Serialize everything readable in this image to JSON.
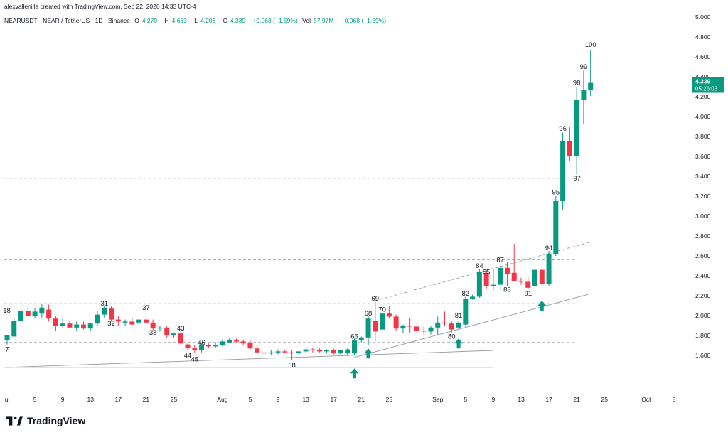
{
  "header": {
    "attribution": "alexvallenilla created with TradingView.com, Sep 22, 2026 14:33 UTC-4",
    "symbol": "NEARUSDT · NEAR / TetherUS · 1D · Binance",
    "open_label": "O",
    "open": "4.270",
    "high_label": "H",
    "high": "4.663",
    "low_label": "L",
    "low": "4.206",
    "close_label": "C",
    "close": "4.339",
    "change": "+0.068 (+1.59%)",
    "vol_label": "Vol",
    "vol": "57.97M",
    "vol_change": "+0.068 (+1.59%)"
  },
  "price_badge": {
    "price": "4.339",
    "countdown": "05:26:03"
  },
  "footer": {
    "brand": "TradingView"
  },
  "colors": {
    "up": "#089981",
    "down": "#f23645",
    "text": "#131722",
    "grid_line": "#9598a1",
    "arrow": "#089981"
  },
  "chart_data": {
    "type": "candlestick",
    "ylim": [
      1.4,
      5.0
    ],
    "y_ticks": [
      "5.000",
      "4.800",
      "4.600",
      "4.400",
      "4.200",
      "4.000",
      "3.800",
      "3.600",
      "3.400",
      "3.200",
      "3.000",
      "2.800",
      "2.600",
      "2.400",
      "2.200",
      "2.000",
      "1.800",
      "1.600"
    ],
    "x_ticks": [
      {
        "label": "ul",
        "day": 1
      },
      {
        "label": "5",
        "day": 5
      },
      {
        "label": "9",
        "day": 9
      },
      {
        "label": "13",
        "day": 13
      },
      {
        "label": "17",
        "day": 17
      },
      {
        "label": "21",
        "day": 21
      },
      {
        "label": "25",
        "day": 25
      },
      {
        "label": "Aug",
        "day": 32
      },
      {
        "label": "5",
        "day": 36
      },
      {
        "label": "9",
        "day": 40
      },
      {
        "label": "13",
        "day": 44
      },
      {
        "label": "17",
        "day": 48
      },
      {
        "label": "21",
        "day": 52
      },
      {
        "label": "25",
        "day": 56
      },
      {
        "label": "Sep",
        "day": 63
      },
      {
        "label": "5",
        "day": 67
      },
      {
        "label": "9",
        "day": 71
      },
      {
        "label": "13",
        "day": 75
      },
      {
        "label": "17",
        "day": 79
      },
      {
        "label": "21",
        "day": 83
      },
      {
        "label": "25",
        "day": 87
      },
      {
        "label": "Oct",
        "day": 93
      },
      {
        "label": "5",
        "day": 97
      }
    ],
    "candles": [
      {
        "day": 1,
        "o": 1.75,
        "h": 1.8,
        "l": 1.71,
        "c": 1.8
      },
      {
        "day": 2,
        "o": 1.79,
        "h": 1.97,
        "l": 1.78,
        "c": 1.95
      },
      {
        "day": 3,
        "o": 1.95,
        "h": 2.12,
        "l": 1.92,
        "c": 2.05
      },
      {
        "day": 4,
        "o": 2.05,
        "h": 2.09,
        "l": 1.99,
        "c": 2.0
      },
      {
        "day": 5,
        "o": 2.0,
        "h": 2.07,
        "l": 1.97,
        "c": 2.04
      },
      {
        "day": 6,
        "o": 2.02,
        "h": 2.12,
        "l": 1.98,
        "c": 2.08
      },
      {
        "day": 7,
        "o": 2.06,
        "h": 2.11,
        "l": 1.94,
        "c": 1.97
      },
      {
        "day": 8,
        "o": 1.97,
        "h": 2.0,
        "l": 1.85,
        "c": 1.9
      },
      {
        "day": 9,
        "o": 1.9,
        "h": 1.97,
        "l": 1.87,
        "c": 1.92
      },
      {
        "day": 10,
        "o": 1.92,
        "h": 1.95,
        "l": 1.87,
        "c": 1.88
      },
      {
        "day": 11,
        "o": 1.88,
        "h": 1.94,
        "l": 1.85,
        "c": 1.91
      },
      {
        "day": 12,
        "o": 1.91,
        "h": 1.94,
        "l": 1.86,
        "c": 1.87
      },
      {
        "day": 13,
        "o": 1.87,
        "h": 1.93,
        "l": 1.85,
        "c": 1.92
      },
      {
        "day": 14,
        "o": 1.92,
        "h": 2.05,
        "l": 1.9,
        "c": 2.01
      },
      {
        "day": 15,
        "o": 2.01,
        "h": 2.1,
        "l": 1.98,
        "c": 2.08
      },
      {
        "day": 16,
        "o": 2.07,
        "h": 2.09,
        "l": 1.94,
        "c": 1.96
      },
      {
        "day": 17,
        "o": 1.96,
        "h": 2.0,
        "l": 1.9,
        "c": 1.94
      },
      {
        "day": 18,
        "o": 1.93,
        "h": 1.96,
        "l": 1.9,
        "c": 1.94
      },
      {
        "day": 19,
        "o": 1.94,
        "h": 1.97,
        "l": 1.9,
        "c": 1.91
      },
      {
        "day": 20,
        "o": 1.93,
        "h": 1.96,
        "l": 1.89,
        "c": 1.96
      },
      {
        "day": 21,
        "o": 1.96,
        "h": 2.07,
        "l": 1.92,
        "c": 1.93
      },
      {
        "day": 22,
        "o": 1.93,
        "h": 1.96,
        "l": 1.85,
        "c": 1.87
      },
      {
        "day": 23,
        "o": 1.87,
        "h": 1.9,
        "l": 1.84,
        "c": 1.88
      },
      {
        "day": 24,
        "o": 1.88,
        "h": 1.9,
        "l": 1.78,
        "c": 1.8
      },
      {
        "day": 25,
        "o": 1.8,
        "h": 1.83,
        "l": 1.78,
        "c": 1.82
      },
      {
        "day": 26,
        "o": 1.82,
        "h": 1.85,
        "l": 1.7,
        "c": 1.72
      },
      {
        "day": 27,
        "o": 1.71,
        "h": 1.73,
        "l": 1.66,
        "c": 1.67
      },
      {
        "day": 28,
        "o": 1.67,
        "h": 1.7,
        "l": 1.63,
        "c": 1.65
      },
      {
        "day": 29,
        "o": 1.65,
        "h": 1.72,
        "l": 1.63,
        "c": 1.71
      },
      {
        "day": 30,
        "o": 1.7,
        "h": 1.72,
        "l": 1.67,
        "c": 1.69
      },
      {
        "day": 31,
        "o": 1.69,
        "h": 1.73,
        "l": 1.67,
        "c": 1.7
      },
      {
        "day": 32,
        "o": 1.7,
        "h": 1.76,
        "l": 1.69,
        "c": 1.74
      },
      {
        "day": 33,
        "o": 1.73,
        "h": 1.77,
        "l": 1.72,
        "c": 1.75
      },
      {
        "day": 34,
        "o": 1.75,
        "h": 1.77,
        "l": 1.73,
        "c": 1.74
      },
      {
        "day": 35,
        "o": 1.74,
        "h": 1.76,
        "l": 1.7,
        "c": 1.72
      },
      {
        "day": 36,
        "o": 1.73,
        "h": 1.75,
        "l": 1.66,
        "c": 1.67
      },
      {
        "day": 37,
        "o": 1.67,
        "h": 1.7,
        "l": 1.62,
        "c": 1.63
      },
      {
        "day": 38,
        "o": 1.63,
        "h": 1.65,
        "l": 1.61,
        "c": 1.62
      },
      {
        "day": 39,
        "o": 1.62,
        "h": 1.65,
        "l": 1.6,
        "c": 1.63
      },
      {
        "day": 40,
        "o": 1.63,
        "h": 1.66,
        "l": 1.61,
        "c": 1.64
      },
      {
        "day": 41,
        "o": 1.64,
        "h": 1.66,
        "l": 1.62,
        "c": 1.63
      },
      {
        "day": 42,
        "o": 1.63,
        "h": 1.65,
        "l": 1.55,
        "c": 1.62
      },
      {
        "day": 43,
        "o": 1.62,
        "h": 1.65,
        "l": 1.6,
        "c": 1.64
      },
      {
        "day": 44,
        "o": 1.64,
        "h": 1.67,
        "l": 1.62,
        "c": 1.66
      },
      {
        "day": 45,
        "o": 1.66,
        "h": 1.68,
        "l": 1.63,
        "c": 1.65
      },
      {
        "day": 46,
        "o": 1.65,
        "h": 1.67,
        "l": 1.63,
        "c": 1.64
      },
      {
        "day": 47,
        "o": 1.64,
        "h": 1.66,
        "l": 1.62,
        "c": 1.65
      },
      {
        "day": 48,
        "o": 1.65,
        "h": 1.67,
        "l": 1.61,
        "c": 1.62
      },
      {
        "day": 49,
        "o": 1.62,
        "h": 1.66,
        "l": 1.61,
        "c": 1.65
      },
      {
        "day": 50,
        "o": 1.62,
        "h": 1.67,
        "l": 1.6,
        "c": 1.66
      },
      {
        "day": 51,
        "o": 1.62,
        "h": 1.77,
        "l": 1.6,
        "c": 1.75
      },
      {
        "day": 52,
        "o": 1.75,
        "h": 1.79,
        "l": 1.73,
        "c": 1.78
      },
      {
        "day": 53,
        "o": 1.78,
        "h": 2.0,
        "l": 1.7,
        "c": 1.97
      },
      {
        "day": 54,
        "o": 1.95,
        "h": 2.14,
        "l": 1.74,
        "c": 1.84
      },
      {
        "day": 55,
        "o": 1.86,
        "h": 2.05,
        "l": 1.83,
        "c": 2.02
      },
      {
        "day": 56,
        "o": 2.02,
        "h": 2.1,
        "l": 1.97,
        "c": 1.99
      },
      {
        "day": 57,
        "o": 1.99,
        "h": 2.01,
        "l": 1.85,
        "c": 1.87
      },
      {
        "day": 58,
        "o": 1.87,
        "h": 1.91,
        "l": 1.82,
        "c": 1.9
      },
      {
        "day": 59,
        "o": 1.9,
        "h": 1.98,
        "l": 1.83,
        "c": 1.89
      },
      {
        "day": 60,
        "o": 1.89,
        "h": 1.95,
        "l": 1.81,
        "c": 1.85
      },
      {
        "day": 61,
        "o": 1.85,
        "h": 1.89,
        "l": 1.8,
        "c": 1.84
      },
      {
        "day": 62,
        "o": 1.84,
        "h": 1.9,
        "l": 1.81,
        "c": 1.88
      },
      {
        "day": 63,
        "o": 1.88,
        "h": 1.99,
        "l": 1.8,
        "c": 1.93
      },
      {
        "day": 64,
        "o": 1.93,
        "h": 2.04,
        "l": 1.9,
        "c": 1.92
      },
      {
        "day": 65,
        "o": 1.92,
        "h": 1.95,
        "l": 1.83,
        "c": 1.86
      },
      {
        "day": 66,
        "o": 1.88,
        "h": 1.94,
        "l": 1.86,
        "c": 1.93
      },
      {
        "day": 67,
        "o": 1.91,
        "h": 2.19,
        "l": 1.89,
        "c": 2.17
      },
      {
        "day": 68,
        "o": 2.17,
        "h": 2.21,
        "l": 2.16,
        "c": 2.19
      },
      {
        "day": 69,
        "o": 2.19,
        "h": 2.47,
        "l": 2.18,
        "c": 2.44
      },
      {
        "day": 70,
        "o": 2.43,
        "h": 2.45,
        "l": 2.27,
        "c": 2.3
      },
      {
        "day": 71,
        "o": 2.3,
        "h": 2.47,
        "l": 2.26,
        "c": 2.31
      },
      {
        "day": 72,
        "o": 2.31,
        "h": 2.52,
        "l": 2.25,
        "c": 2.48
      },
      {
        "day": 73,
        "o": 2.48,
        "h": 2.54,
        "l": 2.3,
        "c": 2.42
      },
      {
        "day": 74,
        "o": 2.43,
        "h": 2.72,
        "l": 2.35,
        "c": 2.35
      },
      {
        "day": 75,
        "o": 2.35,
        "h": 2.38,
        "l": 2.31,
        "c": 2.34
      },
      {
        "day": 76,
        "o": 2.34,
        "h": 2.39,
        "l": 2.26,
        "c": 2.28
      },
      {
        "day": 77,
        "o": 2.3,
        "h": 2.5,
        "l": 2.28,
        "c": 2.46
      },
      {
        "day": 78,
        "o": 2.46,
        "h": 2.48,
        "l": 2.3,
        "c": 2.32
      },
      {
        "day": 79,
        "o": 2.32,
        "h": 2.65,
        "l": 2.3,
        "c": 2.62
      },
      {
        "day": 80,
        "o": 2.62,
        "h": 3.2,
        "l": 2.6,
        "c": 3.15
      },
      {
        "day": 81,
        "o": 3.15,
        "h": 3.84,
        "l": 3.06,
        "c": 3.75
      },
      {
        "day": 82,
        "o": 3.75,
        "h": 3.9,
        "l": 3.55,
        "c": 3.6
      },
      {
        "day": 83,
        "o": 3.6,
        "h": 4.3,
        "l": 3.42,
        "c": 4.17
      },
      {
        "day": 84,
        "o": 4.17,
        "h": 4.46,
        "l": 3.92,
        "c": 4.27
      },
      {
        "day": 85,
        "o": 4.27,
        "h": 4.663,
        "l": 4.206,
        "c": 4.339
      }
    ],
    "annotations": [
      {
        "label": "7",
        "day": 1,
        "price": 1.66,
        "pos": "below"
      },
      {
        "label": "18",
        "day": 2,
        "price": 2.05,
        "pos": "left"
      },
      {
        "label": "31",
        "day": 15,
        "price": 2.12,
        "pos": "above"
      },
      {
        "label": "32",
        "day": 16,
        "price": 1.92,
        "pos": "below"
      },
      {
        "label": "37",
        "day": 21,
        "price": 2.08,
        "pos": "above"
      },
      {
        "label": "38",
        "day": 22,
        "price": 1.83,
        "pos": "below"
      },
      {
        "label": "43",
        "day": 26,
        "price": 1.87,
        "pos": "above"
      },
      {
        "label": "44",
        "day": 27,
        "price": 1.6,
        "pos": "below"
      },
      {
        "label": "45",
        "day": 28,
        "price": 1.56,
        "pos": "below"
      },
      {
        "label": "46",
        "day": 29,
        "price": 1.73,
        "pos": "above"
      },
      {
        "label": "58",
        "day": 42,
        "price": 1.5,
        "pos": "below"
      },
      {
        "label": "66",
        "day": 51,
        "price": 1.79,
        "pos": "above"
      },
      {
        "label": "68",
        "day": 53,
        "price": 2.02,
        "pos": "above"
      },
      {
        "label": "69",
        "day": 54,
        "price": 2.17,
        "pos": "above"
      },
      {
        "label": "70",
        "day": 55,
        "price": 2.06,
        "pos": "above"
      },
      {
        "label": "80",
        "day": 65,
        "price": 1.79,
        "pos": "below"
      },
      {
        "label": "81",
        "day": 66,
        "price": 2.0,
        "pos": "above"
      },
      {
        "label": "82",
        "day": 67,
        "price": 2.22,
        "pos": "above"
      },
      {
        "label": "84",
        "day": 69,
        "price": 2.5,
        "pos": "above"
      },
      {
        "label": "85",
        "day": 70,
        "price": 2.44,
        "pos": "above"
      },
      {
        "label": "87",
        "day": 72,
        "price": 2.56,
        "pos": "above"
      },
      {
        "label": "88",
        "day": 73,
        "price": 2.26,
        "pos": "below"
      },
      {
        "label": "91",
        "day": 76,
        "price": 2.22,
        "pos": "below"
      },
      {
        "label": "94",
        "day": 79,
        "price": 2.68,
        "pos": "above"
      },
      {
        "label": "95",
        "day": 80,
        "price": 3.24,
        "pos": "above"
      },
      {
        "label": "96",
        "day": 81,
        "price": 3.88,
        "pos": "above"
      },
      {
        "label": "97",
        "day": 82,
        "price": 3.38,
        "pos": "right"
      },
      {
        "label": "98",
        "day": 83,
        "price": 4.34,
        "pos": "above"
      },
      {
        "label": "99",
        "day": 84,
        "price": 4.5,
        "pos": "above"
      },
      {
        "label": "100",
        "day": 85,
        "price": 4.72,
        "pos": "above"
      }
    ],
    "horizontal_levels": [
      {
        "price": 4.54,
        "style": "dashed"
      },
      {
        "price": 3.38,
        "style": "dashed"
      },
      {
        "price": 2.56,
        "style": "dashed"
      },
      {
        "price": 2.12,
        "style": "dashed"
      },
      {
        "price": 1.73,
        "style": "dashed"
      },
      {
        "price": 1.48,
        "style": "solid",
        "x_end_day": 71
      }
    ],
    "trend_lines": [
      {
        "from": {
          "day": 1,
          "price": 1.48
        },
        "to": {
          "day": 71,
          "price": 1.65
        },
        "style": "solid"
      },
      {
        "from": {
          "day": 51,
          "price": 1.58
        },
        "to": {
          "day": 85,
          "price": 2.22
        },
        "style": "solid"
      },
      {
        "from": {
          "day": 54,
          "price": 2.15
        },
        "to": {
          "day": 85,
          "price": 2.74
        },
        "style": "dashed"
      }
    ],
    "arrows": [
      {
        "day": 51,
        "price": 1.47
      },
      {
        "day": 53,
        "price": 1.67
      },
      {
        "day": 66,
        "price": 1.77
      },
      {
        "day": 78,
        "price": 2.15
      }
    ]
  }
}
